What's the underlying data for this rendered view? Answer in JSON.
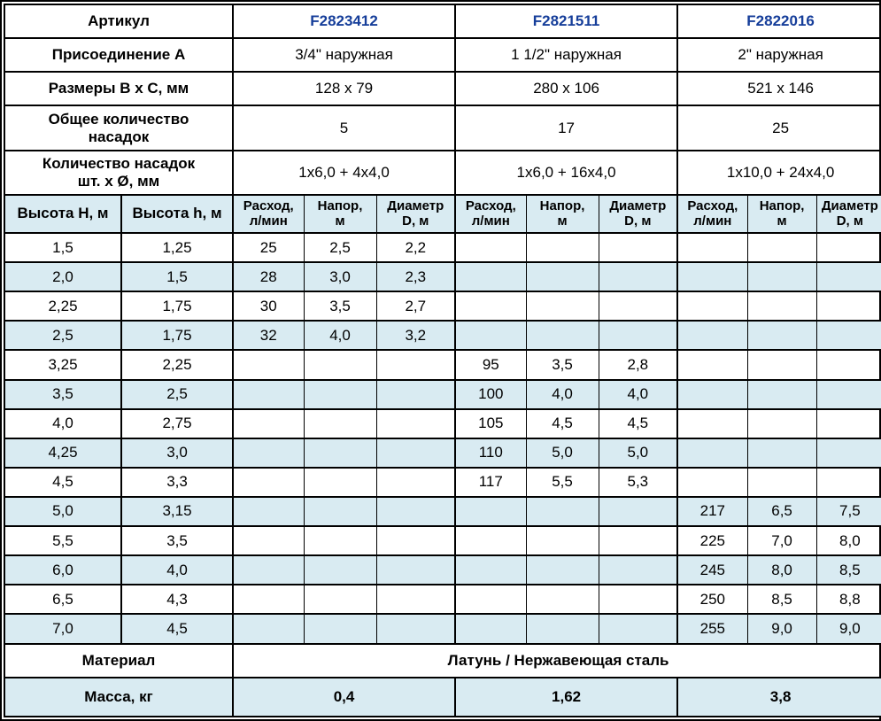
{
  "colors": {
    "article_text": "#163e9a",
    "row_alt_bg": "#d9ebf2",
    "border": "#000000",
    "text": "#000000",
    "background": "#ffffff"
  },
  "chart_data": {
    "type": "table",
    "spec_rows": [
      {
        "label": "Артикул",
        "values": [
          "F2823412",
          "F2821511",
          "F2822016"
        ]
      },
      {
        "label": "Присоединение А",
        "values": [
          "3/4\" наружная",
          "1 1/2\" наружная",
          "2\" наружная"
        ]
      },
      {
        "label": "Размеры В x С, мм",
        "values": [
          "128 x 79",
          "280 x 106",
          "521 x 146"
        ]
      },
      {
        "label": "Общее количество\nнасадок",
        "values": [
          "5",
          "17",
          "25"
        ]
      },
      {
        "label": "Количество насадок\nшт. x Ø, мм",
        "values": [
          "1x6,0 + 4x4,0",
          "1x6,0 + 16x4,0",
          "1x10,0 + 24x4,0"
        ]
      }
    ],
    "performance": {
      "height_H_label": "Высота H, м",
      "height_h_label": "Высота h, м",
      "measure_labels": [
        "Расход,\nл/мин",
        "Напор,\nм",
        "Диаметр\nD, м"
      ],
      "rows": [
        {
          "cells": [
            "1,5",
            "1,25",
            "25",
            "2,5",
            "2,2",
            "",
            "",
            "",
            "",
            "",
            ""
          ]
        },
        {
          "cells": [
            "2,0",
            "1,5",
            "28",
            "3,0",
            "2,3",
            "",
            "",
            "",
            "",
            "",
            ""
          ]
        },
        {
          "cells": [
            "2,25",
            "1,75",
            "30",
            "3,5",
            "2,7",
            "",
            "",
            "",
            "",
            "",
            ""
          ]
        },
        {
          "cells": [
            "2,5",
            "1,75",
            "32",
            "4,0",
            "3,2",
            "",
            "",
            "",
            "",
            "",
            ""
          ]
        },
        {
          "cells": [
            "3,25",
            "2,25",
            "",
            "",
            "",
            "95",
            "3,5",
            "2,8",
            "",
            "",
            ""
          ]
        },
        {
          "cells": [
            "3,5",
            "2,5",
            "",
            "",
            "",
            "100",
            "4,0",
            "4,0",
            "",
            "",
            ""
          ]
        },
        {
          "cells": [
            "4,0",
            "2,75",
            "",
            "",
            "",
            "105",
            "4,5",
            "4,5",
            "",
            "",
            ""
          ]
        },
        {
          "cells": [
            "4,25",
            "3,0",
            "",
            "",
            "",
            "110",
            "5,0",
            "5,0",
            "",
            "",
            ""
          ]
        },
        {
          "cells": [
            "4,5",
            "3,3",
            "",
            "",
            "",
            "117",
            "5,5",
            "5,3",
            "",
            "",
            ""
          ]
        },
        {
          "cells": [
            "5,0",
            "3,15",
            "",
            "",
            "",
            "",
            "",
            "",
            "217",
            "6,5",
            "7,5"
          ]
        },
        {
          "cells": [
            "5,5",
            "3,5",
            "",
            "",
            "",
            "",
            "",
            "",
            "225",
            "7,0",
            "8,0"
          ]
        },
        {
          "cells": [
            "6,0",
            "4,0",
            "",
            "",
            "",
            "",
            "",
            "",
            "245",
            "8,0",
            "8,5"
          ]
        },
        {
          "cells": [
            "6,5",
            "4,3",
            "",
            "",
            "",
            "",
            "",
            "",
            "250",
            "8,5",
            "8,8"
          ]
        },
        {
          "cells": [
            "7,0",
            "4,5",
            "",
            "",
            "",
            "",
            "",
            "",
            "255",
            "9,0",
            "9,0"
          ]
        }
      ]
    },
    "material_label": "Материал",
    "material_value": "Латунь / Нержавеющая сталь",
    "mass_label": "Масса, кг",
    "mass_values": [
      "0,4",
      "1,62",
      "3,8"
    ]
  }
}
